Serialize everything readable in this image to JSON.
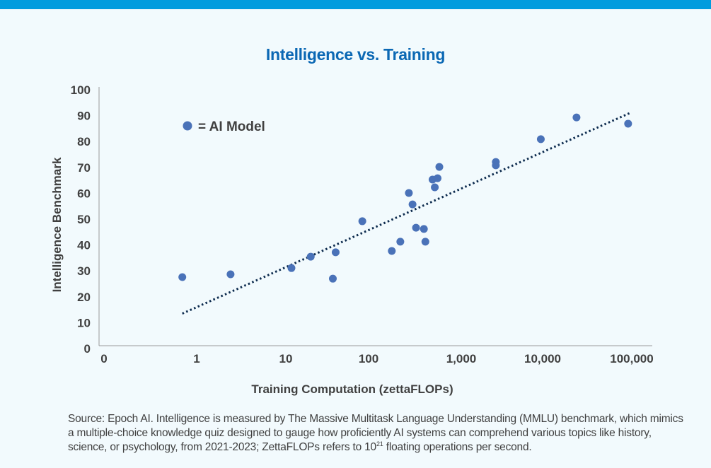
{
  "chart_data": {
    "type": "scatter",
    "title": "Intelligence vs. Training",
    "xlabel": "Training Computation (zettaFLOPs)",
    "ylabel": "Intelligence Benchmark",
    "xscale": "log",
    "x_ticks": [
      "0",
      "1",
      "10",
      "100",
      "1,000",
      "10,000",
      "100,000"
    ],
    "y_ticks": [
      "0",
      "10",
      "20",
      "30",
      "40",
      "50",
      "60",
      "70",
      "80",
      "90",
      "100"
    ],
    "ylim": [
      0,
      100
    ],
    "legend": {
      "label": "= AI Model",
      "placement": "top-left"
    },
    "marker_color": "#4a72b8",
    "trendline_color": "#0d2b4e",
    "points": [
      {
        "x": 0.69,
        "y": 27.6
      },
      {
        "x": 2.4,
        "y": 28.7
      },
      {
        "x": 11.7,
        "y": 31.1
      },
      {
        "x": 20,
        "y": 35.5
      },
      {
        "x": 40,
        "y": 37.2
      },
      {
        "x": 37,
        "y": 27
      },
      {
        "x": 84,
        "y": 49.2
      },
      {
        "x": 178,
        "y": 37.7
      },
      {
        "x": 220,
        "y": 41.3
      },
      {
        "x": 272,
        "y": 60.1
      },
      {
        "x": 298,
        "y": 55.7
      },
      {
        "x": 325,
        "y": 46.7
      },
      {
        "x": 395,
        "y": 46.2
      },
      {
        "x": 410,
        "y": 41.3
      },
      {
        "x": 490,
        "y": 65.3
      },
      {
        "x": 518,
        "y": 62.3
      },
      {
        "x": 555,
        "y": 65.8
      },
      {
        "x": 580,
        "y": 70.2
      },
      {
        "x": 2660,
        "y": 72.1
      },
      {
        "x": 2660,
        "y": 70.8
      },
      {
        "x": 9500,
        "y": 80.9
      },
      {
        "x": 24000,
        "y": 89.3
      },
      {
        "x": 91000,
        "y": 86.9
      }
    ],
    "trendline": [
      {
        "x": 0.69,
        "y": 13.5
      },
      {
        "x": 95000,
        "y": 91
      }
    ]
  },
  "note": {
    "part1": "Source: Epoch AI. Intelligence is measured by The Massive Multitask Language Understanding (MMLU) benchmark, which mimics a multiple-choice knowledge quiz designed to gauge how proficiently AI systems can comprehend various topics like history, science, or psychology, from 2021-2023; ZettaFLOPs refers to 10",
    "sup": "21",
    "part2": " floating operations per second."
  },
  "colors": {
    "topbar": "#009cde",
    "title": "#0b68b4",
    "background": "#f2fafd"
  }
}
